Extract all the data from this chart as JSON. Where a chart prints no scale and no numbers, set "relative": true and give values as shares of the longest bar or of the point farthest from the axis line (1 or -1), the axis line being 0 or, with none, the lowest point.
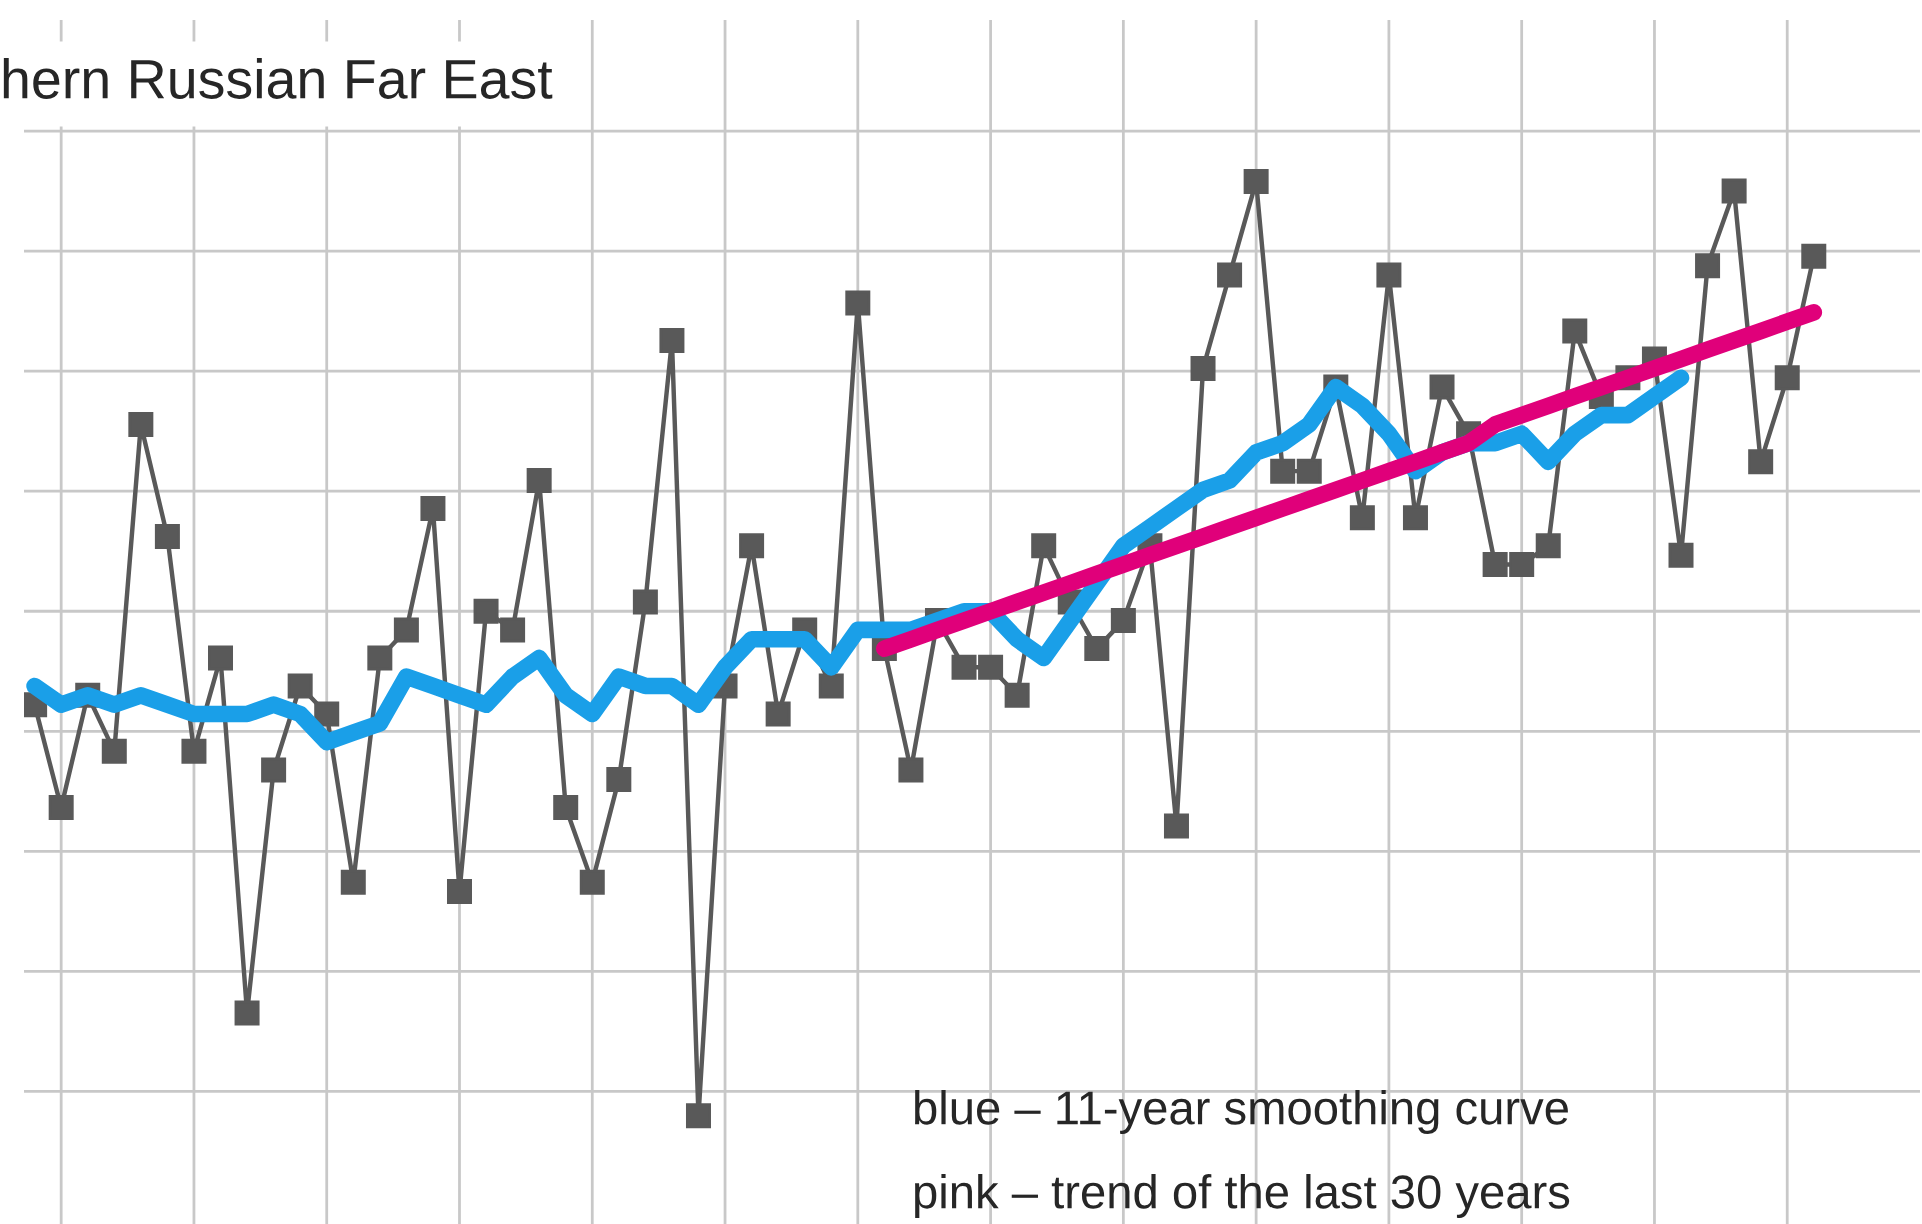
{
  "chart_data": {
    "type": "line",
    "title": "hern Russian Far East",
    "relative": true,
    "grid": true,
    "legend": false,
    "tick_labels": false,
    "categories": [
      null,
      null,
      null,
      null,
      null,
      null,
      null,
      null,
      null,
      null,
      null,
      null,
      null,
      null,
      null,
      null,
      null,
      null,
      null,
      null,
      null,
      null,
      null,
      null,
      null,
      null,
      null,
      null,
      null,
      null,
      null,
      null,
      null,
      null,
      null,
      null,
      null,
      null,
      null,
      null,
      null,
      null,
      null,
      null,
      null,
      null,
      null,
      null,
      null,
      null,
      null,
      null,
      null,
      null,
      null,
      null,
      null,
      null,
      null,
      null,
      null,
      null,
      null,
      null,
      null,
      null,
      null,
      null
    ],
    "series": [
      {
        "color": "#595959",
        "marker": "square",
        "line_style": "solid",
        "values": [
          0.44,
          0.33,
          0.45,
          0.39,
          0.74,
          0.62,
          0.39,
          0.49,
          0.11,
          0.37,
          0.46,
          0.43,
          0.25,
          0.49,
          0.52,
          0.65,
          0.24,
          0.54,
          0.52,
          0.68,
          0.33,
          0.25,
          0.36,
          0.55,
          0.83,
          0,
          0.46,
          0.61,
          0.43,
          0.52,
          0.46,
          0.87,
          0.5,
          0.37,
          0.53,
          0.48,
          0.48,
          0.45,
          0.61,
          0.55,
          0.5,
          0.53,
          0.61,
          0.31,
          0.8,
          0.9,
          1,
          0.69,
          0.69,
          0.78,
          0.64,
          0.9,
          0.64,
          0.78,
          0.73,
          0.59,
          0.59,
          0.61,
          0.84,
          0.77,
          0.79,
          0.81,
          0.6,
          0.91,
          0.99,
          0.7,
          0.79,
          0.92
        ]
      },
      {
        "color": "#1a9fe8",
        "marker": "none",
        "line_style": "solid",
        "values": [
          0.46,
          0.44,
          0.45,
          0.44,
          0.45,
          0.44,
          0.43,
          0.43,
          0.43,
          0.44,
          0.43,
          0.4,
          0.41,
          0.42,
          0.47,
          0.46,
          0.45,
          0.44,
          0.47,
          0.49,
          0.45,
          0.43,
          0.47,
          0.46,
          0.46,
          0.44,
          0.48,
          0.51,
          0.51,
          0.51,
          0.48,
          0.52,
          0.52,
          0.52,
          0.53,
          0.54,
          0.54,
          0.51,
          0.49,
          0.53,
          0.57,
          0.61,
          0.63,
          0.65,
          0.67,
          0.68,
          0.71,
          0.72,
          0.74,
          0.78,
          0.76,
          0.73,
          0.69,
          0.71,
          0.72,
          0.72,
          0.73,
          0.7,
          0.73,
          0.75,
          0.75,
          0.77,
          0.79,
          null,
          null,
          null,
          null,
          null
        ]
      },
      {
        "color": "#e0007a",
        "marker": "none",
        "line_style": "solid",
        "values": [
          null,
          null,
          null,
          null,
          null,
          null,
          null,
          null,
          null,
          null,
          null,
          null,
          null,
          null,
          null,
          null,
          null,
          null,
          null,
          null,
          null,
          null,
          null,
          null,
          null,
          null,
          null,
          null,
          null,
          null,
          null,
          null,
          0.5,
          0.51,
          0.52,
          0.53,
          0.54,
          0.55,
          0.56,
          0.57,
          0.58,
          0.59,
          0.6,
          0.61,
          0.62,
          0.63,
          0.64,
          0.65,
          0.66,
          0.67,
          0.68,
          0.69,
          0.7,
          0.71,
          0.72,
          0.74,
          0.75,
          0.76,
          0.77,
          0.78,
          0.79,
          0.8,
          0.81,
          0.82,
          0.83,
          0.84,
          0.85,
          0.86
        ]
      }
    ],
    "annotations": [
      "blue – 11-year smoothing curve",
      "pink – trend of the last 30 years"
    ]
  }
}
